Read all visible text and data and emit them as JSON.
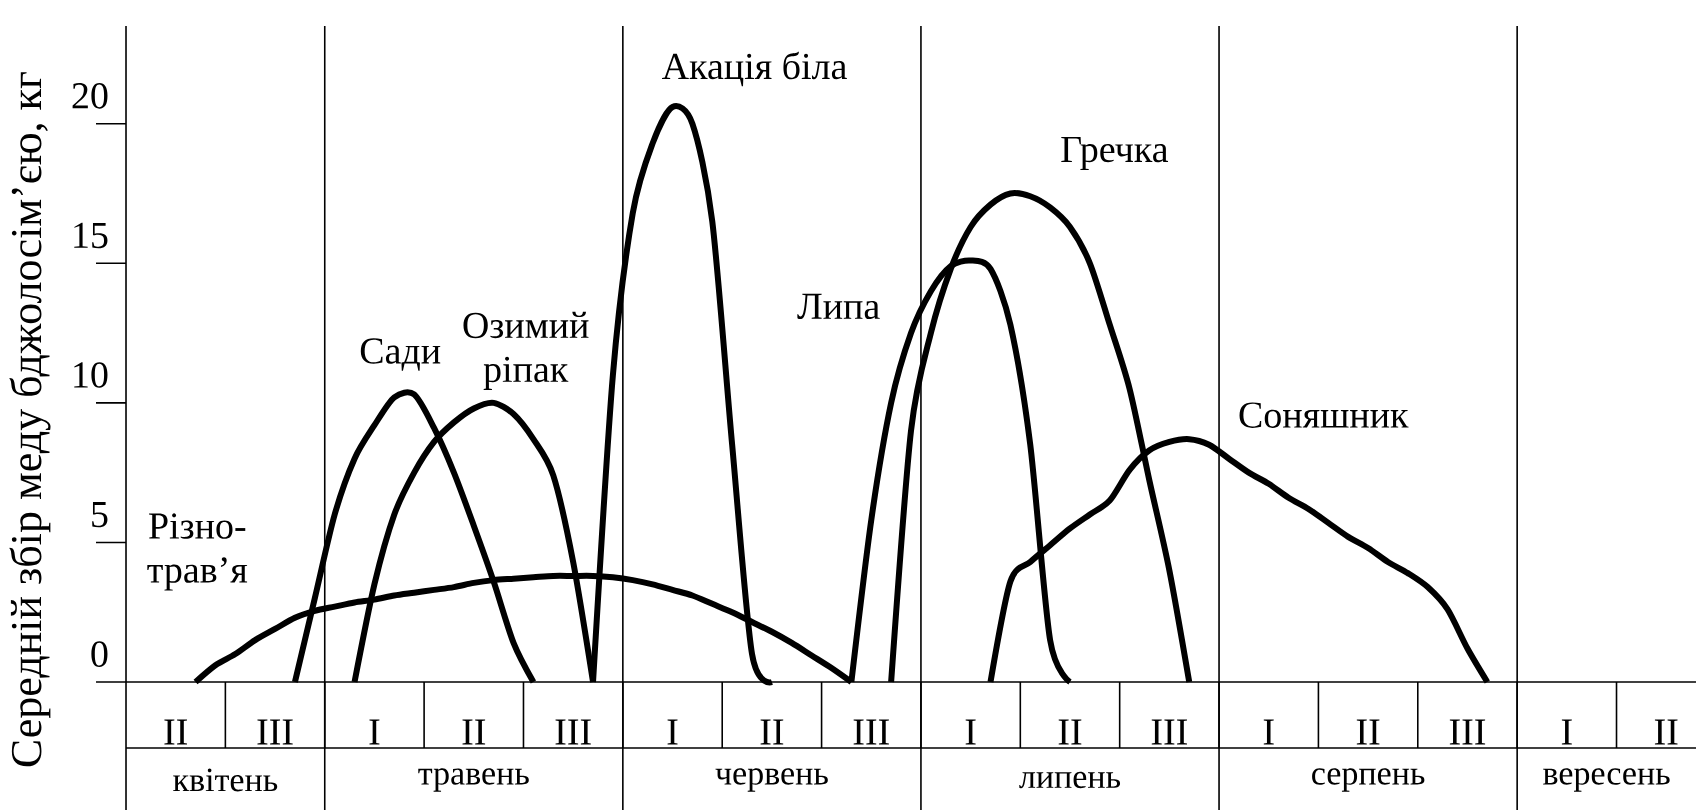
{
  "chart_data": {
    "type": "line",
    "ylabel": "Середній збір меду бджолосім’єю, кг",
    "categories": [
      null,
      null,
      "II",
      null,
      null,
      null,
      null,
      "III",
      null,
      null,
      null,
      null,
      "I",
      null,
      null,
      null,
      null,
      "II",
      null,
      null,
      null,
      null,
      "III",
      null,
      null,
      null,
      null,
      "I",
      null,
      null,
      null,
      null,
      "II",
      null,
      null,
      null,
      null,
      "III",
      null,
      null,
      null,
      null,
      "I",
      null,
      null,
      null,
      null,
      "II",
      null,
      null,
      null,
      null,
      "III",
      null,
      null,
      null,
      null,
      "I",
      null,
      null,
      null,
      null,
      "II",
      null,
      null,
      null,
      null,
      "III",
      null,
      null,
      null,
      null,
      "I",
      null,
      null,
      null,
      null,
      "II",
      null
    ],
    "ylim": [
      0,
      23.5
    ],
    "yticks": [
      0,
      5,
      10,
      15,
      20
    ],
    "line_style": "solid",
    "series": [
      {
        "name": "Різно-трав’я",
        "color": "#000000",
        "values": [
          null,
          null,
          null,
          0,
          0.6,
          1.0,
          1.5,
          1.9,
          2.3,
          2.55,
          2.7,
          2.85,
          2.95,
          3.1,
          3.2,
          3.3,
          3.4,
          3.55,
          3.65,
          3.7,
          3.75,
          3.8,
          3.8,
          3.8,
          3.75,
          3.65,
          3.5,
          3.3,
          3.1,
          2.8,
          2.5,
          2.15,
          1.8,
          1.4,
          0.95,
          0.5,
          0,
          null,
          null,
          null,
          null,
          null,
          null,
          null,
          null,
          null,
          null,
          null,
          null,
          null,
          null,
          null,
          null,
          null,
          null,
          null,
          null,
          null,
          null,
          null,
          null,
          null,
          null,
          null,
          null,
          null,
          null,
          null,
          null,
          null,
          null,
          null,
          null,
          null,
          null,
          null,
          null,
          null,
          null
        ]
      },
      {
        "name": "Сади",
        "color": "#000000",
        "values": [
          null,
          null,
          null,
          null,
          null,
          null,
          null,
          null,
          0,
          3.0,
          6.0,
          8.0,
          9.2,
          10.2,
          10.3,
          9.1,
          7.5,
          5.6,
          3.6,
          1.4,
          0,
          null,
          null,
          null,
          null,
          null,
          null,
          null,
          null,
          null,
          null,
          null,
          null,
          null,
          null,
          null,
          null,
          null,
          null,
          null,
          null,
          null,
          null,
          null,
          null,
          null,
          null,
          null,
          null,
          null,
          null,
          null,
          null,
          null,
          null,
          null,
          null,
          null,
          null,
          null,
          null,
          null,
          null,
          null,
          null,
          null,
          null,
          null,
          null,
          null,
          null,
          null,
          null,
          null,
          null,
          null,
          null,
          null,
          null
        ]
      },
      {
        "name": "Озимий ріпак",
        "color": "#000000",
        "values": [
          null,
          null,
          null,
          null,
          null,
          null,
          null,
          null,
          null,
          null,
          null,
          0,
          3.5,
          6.0,
          7.5,
          8.6,
          9.3,
          9.8,
          10.0,
          9.6,
          8.7,
          7.4,
          4.3,
          0,
          null,
          null,
          null,
          null,
          null,
          null,
          null,
          null,
          null,
          null,
          null,
          null,
          null,
          null,
          null,
          null,
          null,
          null,
          null,
          null,
          null,
          null,
          null,
          null,
          null,
          null,
          null,
          null,
          null,
          null,
          null,
          null,
          null,
          null,
          null,
          null,
          null,
          null,
          null,
          null,
          null,
          null,
          null,
          null,
          null,
          null,
          null,
          null,
          null,
          null,
          null,
          null,
          null,
          null,
          null
        ]
      },
      {
        "name": "Акація біла",
        "color": "#000000",
        "values": [
          null,
          null,
          null,
          null,
          null,
          null,
          null,
          null,
          null,
          null,
          null,
          null,
          null,
          null,
          null,
          null,
          null,
          null,
          null,
          null,
          null,
          null,
          null,
          0,
          11,
          16.8,
          19.3,
          20.6,
          20.0,
          16.5,
          8.5,
          1.0,
          0,
          null,
          null,
          null,
          null,
          null,
          null,
          null,
          null,
          null,
          null,
          null,
          null,
          null,
          null,
          null,
          null,
          null,
          null,
          null,
          null,
          null,
          null,
          null,
          null,
          null,
          null,
          null,
          null,
          null,
          null,
          null,
          null,
          null,
          null,
          null,
          null,
          null,
          null,
          null,
          null,
          null,
          null,
          null,
          null,
          null,
          null
        ]
      },
      {
        "name": "Липа",
        "color": "#000000",
        "values": [
          null,
          null,
          null,
          null,
          null,
          null,
          null,
          null,
          null,
          null,
          null,
          null,
          null,
          null,
          null,
          null,
          null,
          null,
          null,
          null,
          null,
          null,
          null,
          null,
          null,
          null,
          null,
          null,
          null,
          null,
          null,
          null,
          null,
          null,
          null,
          null,
          0,
          5.8,
          10.0,
          12.5,
          14.0,
          14.9,
          15.1,
          14.8,
          12.8,
          8.5,
          1.5,
          0,
          null,
          null,
          null,
          null,
          null,
          null,
          null,
          null,
          null,
          null,
          null,
          null,
          null,
          null,
          null,
          null,
          null,
          null,
          null,
          null,
          null,
          null,
          null,
          null,
          null,
          null,
          null,
          null,
          null,
          null,
          null
        ]
      },
      {
        "name": "Гречка",
        "color": "#000000",
        "values": [
          null,
          null,
          null,
          null,
          null,
          null,
          null,
          null,
          null,
          null,
          null,
          null,
          null,
          null,
          null,
          null,
          null,
          null,
          null,
          null,
          null,
          null,
          null,
          null,
          null,
          null,
          null,
          null,
          null,
          null,
          null,
          null,
          null,
          null,
          null,
          null,
          null,
          null,
          0,
          9.0,
          12.5,
          14.8,
          16.3,
          17.1,
          17.5,
          17.4,
          17.0,
          16.3,
          15.0,
          12.8,
          10.5,
          7.2,
          4.0,
          0,
          null,
          null,
          null,
          null,
          null,
          null,
          null,
          null,
          null,
          null,
          null,
          null,
          null,
          null,
          null,
          null,
          null,
          null,
          null,
          null,
          null,
          null,
          null,
          null,
          null
        ]
      },
      {
        "name": "Соняшник",
        "color": "#000000",
        "values": [
          null,
          null,
          null,
          null,
          null,
          null,
          null,
          null,
          null,
          null,
          null,
          null,
          null,
          null,
          null,
          null,
          null,
          null,
          null,
          null,
          null,
          null,
          null,
          null,
          null,
          null,
          null,
          null,
          null,
          null,
          null,
          null,
          null,
          null,
          null,
          null,
          null,
          null,
          null,
          null,
          null,
          null,
          null,
          0,
          3.6,
          4.3,
          4.9,
          5.5,
          6.0,
          6.5,
          7.6,
          8.3,
          8.6,
          8.7,
          8.5,
          8.0,
          7.5,
          7.1,
          6.6,
          6.2,
          5.7,
          5.2,
          4.8,
          4.3,
          3.9,
          3.4,
          2.6,
          1.2,
          0,
          null,
          null,
          null,
          null,
          null,
          null,
          null,
          null,
          null,
          null
        ]
      }
    ],
    "annotations": [
      "квітень",
      "травень",
      "червень",
      "липень",
      "серпень",
      "вересень"
    ]
  }
}
